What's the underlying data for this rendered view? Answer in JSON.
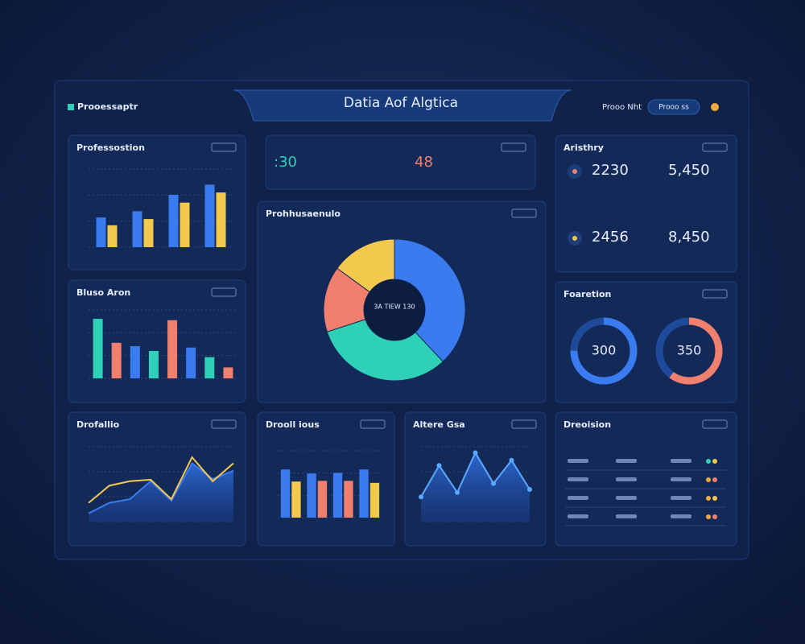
{
  "header": {
    "brand": "Prooessaptr",
    "title": "Datia Aof Algtica",
    "user": "Prooo Nht",
    "button": "Prooo ss"
  },
  "kpi_strip": {
    "first": ":30",
    "second": "48"
  },
  "stats": {
    "title": "Aristhry",
    "items": [
      "2230",
      "5,450",
      "2456",
      "8,450"
    ]
  },
  "rings": {
    "title": "Foaretion",
    "values": [
      "300",
      "350"
    ]
  },
  "table": {
    "title": "Dreoision"
  },
  "chart_data": [
    {
      "type": "bar",
      "title": "Professostion",
      "ylim": [
        0,
        100
      ],
      "series": [
        {
          "color": "#3b7bf0",
          "values": [
            38,
            46,
            67,
            80
          ]
        },
        {
          "color": "#f2c94c",
          "values": [
            28,
            36,
            57,
            70
          ]
        }
      ]
    },
    {
      "type": "bar",
      "title": "Bluso Aron",
      "ylim": [
        0,
        100
      ],
      "series": [
        {
          "colors": [
            "#2fd0b8",
            "#f07f6e",
            "#3b7bf0",
            "#2fd0b8",
            "#f07f6e",
            "#3b7bf0",
            "#2fd0b8",
            "#f07f6e"
          ],
          "values": [
            87,
            52,
            47,
            40,
            85,
            45,
            31,
            16
          ]
        }
      ]
    },
    {
      "type": "line",
      "title": "Drofallio",
      "ylim": [
        0,
        100
      ],
      "area": true,
      "series": [
        {
          "color": "#3b7bf0",
          "values": [
            11,
            25,
            30,
            54,
            28,
            78,
            57,
            68
          ]
        },
        {
          "color": "#f2c94c",
          "values": [
            25,
            48,
            54,
            56,
            30,
            86,
            54,
            78
          ]
        }
      ]
    },
    {
      "type": "pie",
      "title": "Prohhusaenulo",
      "center_label": "3A TIEW 130",
      "values": [
        38,
        32,
        15,
        15
      ],
      "colors": [
        "#3b7bf0",
        "#2fd0b8",
        "#f07f6e",
        "#f2c94c"
      ]
    },
    {
      "type": "bar",
      "title": "Drooll ious",
      "ylim": [
        0,
        100
      ],
      "series": [
        {
          "color": "#3b7bf0",
          "values": [
            72,
            66,
            67,
            72
          ]
        },
        {
          "colors": [
            "#f2c94c",
            "#f07f6e",
            "#f07f6e",
            "#f2c94c"
          ],
          "values": [
            54,
            55,
            55,
            52
          ]
        }
      ]
    },
    {
      "type": "line",
      "title": "Altere Gsa",
      "ylim": [
        0,
        100
      ],
      "area": true,
      "series": [
        {
          "color": "#5aa9ff",
          "values": [
            33,
            75,
            39,
            92,
            51,
            82,
            43
          ]
        }
      ]
    }
  ]
}
